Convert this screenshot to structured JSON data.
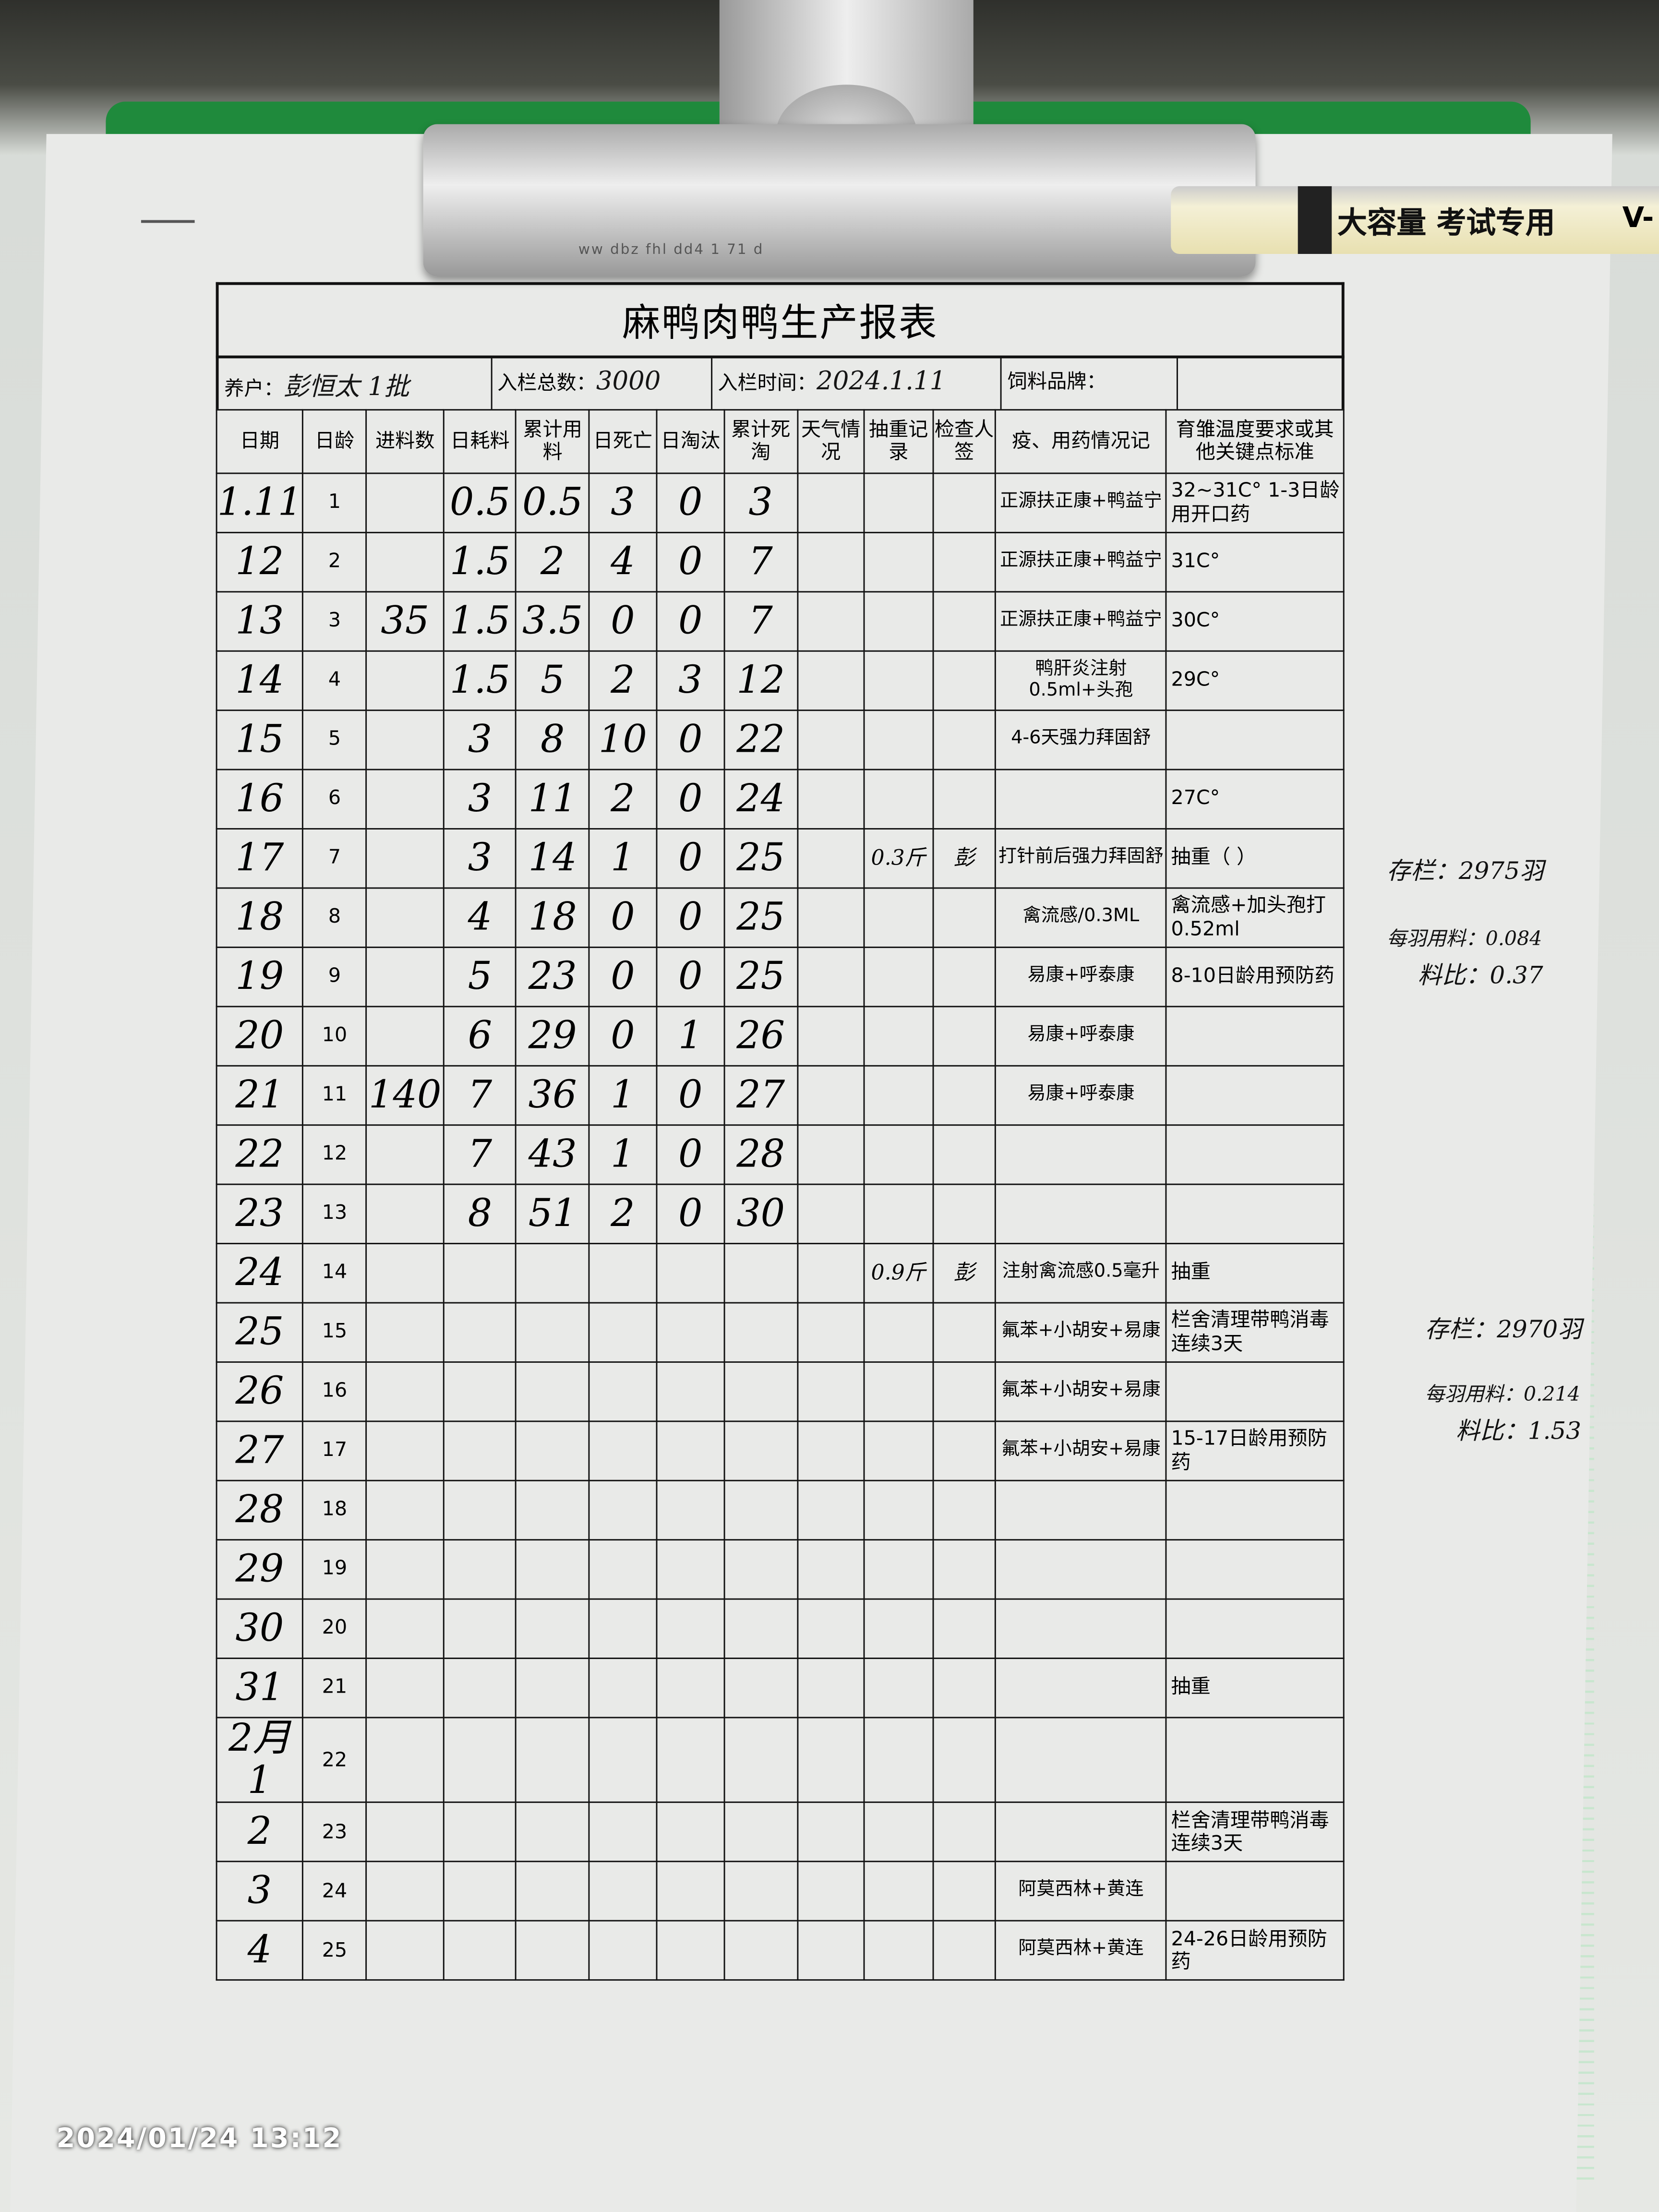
{
  "pen_label": "大容量 考试专用",
  "pen_suffix": "V-",
  "clip_engraving": "ww dbz fhl dd4 1 71 d",
  "form": {
    "title": "麻鸭肉鸭生产报表",
    "farmer_label": "养户：",
    "farmer_value": "彭恒太 1批",
    "total_label": "入栏总数：",
    "total_value": "3000",
    "date_label": "入栏时间：",
    "date_value": "2024.1.11",
    "feed_label": "饲料品牌：",
    "columns": [
      "日期",
      "日龄",
      "进料数",
      "日耗料",
      "累计用料",
      "日死亡",
      "日淘汰",
      "累计死淘",
      "天气情况",
      "抽重记录",
      "检查人签",
      "疫、用药情况记",
      "育雏温度要求或其他关键点标准"
    ],
    "rows": [
      {
        "date": "1.11",
        "age": "1",
        "feed_in": "",
        "daily_feed": "0.5",
        "cum_feed": "0.5",
        "dead": "3",
        "culled": "0",
        "cum_loss": "3",
        "weather": "",
        "weight": "",
        "sign": "",
        "meds": "正源扶正康+鸭益宁",
        "notes": "32~31C° 1-3日龄用开口药"
      },
      {
        "date": "12",
        "age": "2",
        "feed_in": "",
        "daily_feed": "1.5",
        "cum_feed": "2",
        "dead": "4",
        "culled": "0",
        "cum_loss": "7",
        "weather": "",
        "weight": "",
        "sign": "",
        "meds": "正源扶正康+鸭益宁",
        "notes": "31C°"
      },
      {
        "date": "13",
        "age": "3",
        "feed_in": "35",
        "daily_feed": "1.5",
        "cum_feed": "3.5",
        "dead": "0",
        "culled": "0",
        "cum_loss": "7",
        "weather": "",
        "weight": "",
        "sign": "",
        "meds": "正源扶正康+鸭益宁",
        "notes": "30C°"
      },
      {
        "date": "14",
        "age": "4",
        "feed_in": "",
        "daily_feed": "1.5",
        "cum_feed": "5",
        "dead": "2",
        "culled": "3",
        "cum_loss": "12",
        "weather": "",
        "weight": "",
        "sign": "",
        "meds": "鸭肝炎注射0.5ml+头孢",
        "notes": "29C°"
      },
      {
        "date": "15",
        "age": "5",
        "feed_in": "",
        "daily_feed": "3",
        "cum_feed": "8",
        "dead": "10",
        "culled": "0",
        "cum_loss": "22",
        "weather": "",
        "weight": "",
        "sign": "",
        "meds": "4-6天强力拜固舒",
        "notes": ""
      },
      {
        "date": "16",
        "age": "6",
        "feed_in": "",
        "daily_feed": "3",
        "cum_feed": "11",
        "dead": "2",
        "culled": "0",
        "cum_loss": "24",
        "weather": "",
        "weight": "",
        "sign": "",
        "meds": "",
        "notes": "27C°"
      },
      {
        "date": "17",
        "age": "7",
        "feed_in": "",
        "daily_feed": "3",
        "cum_feed": "14",
        "dead": "1",
        "culled": "0",
        "cum_loss": "25",
        "weather": "",
        "weight": "0.3斤",
        "sign": "彭",
        "meds": "打针前后强力拜固舒",
        "notes": "抽重（ ）"
      },
      {
        "date": "18",
        "age": "8",
        "feed_in": "",
        "daily_feed": "4",
        "cum_feed": "18",
        "dead": "0",
        "culled": "0",
        "cum_loss": "25",
        "weather": "",
        "weight": "",
        "sign": "",
        "meds": "禽流感/0.3ML",
        "notes": "禽流感+加头孢打0.52ml"
      },
      {
        "date": "19",
        "age": "9",
        "feed_in": "",
        "daily_feed": "5",
        "cum_feed": "23",
        "dead": "0",
        "culled": "0",
        "cum_loss": "25",
        "weather": "",
        "weight": "",
        "sign": "",
        "meds": "易康+呼泰康",
        "notes": "8-10日龄用预防药"
      },
      {
        "date": "20",
        "age": "10",
        "feed_in": "",
        "daily_feed": "6",
        "cum_feed": "29",
        "dead": "0",
        "culled": "1",
        "cum_loss": "26",
        "weather": "",
        "weight": "",
        "sign": "",
        "meds": "易康+呼泰康",
        "notes": ""
      },
      {
        "date": "21",
        "age": "11",
        "feed_in": "140",
        "daily_feed": "7",
        "cum_feed": "36",
        "dead": "1",
        "culled": "0",
        "cum_loss": "27",
        "weather": "",
        "weight": "",
        "sign": "",
        "meds": "易康+呼泰康",
        "notes": ""
      },
      {
        "date": "22",
        "age": "12",
        "feed_in": "",
        "daily_feed": "7",
        "cum_feed": "43",
        "dead": "1",
        "culled": "0",
        "cum_loss": "28",
        "weather": "",
        "weight": "",
        "sign": "",
        "meds": "",
        "notes": ""
      },
      {
        "date": "23",
        "age": "13",
        "feed_in": "",
        "daily_feed": "8",
        "cum_feed": "51",
        "dead": "2",
        "culled": "0",
        "cum_loss": "30",
        "weather": "",
        "weight": "",
        "sign": "",
        "meds": "",
        "notes": ""
      },
      {
        "date": "24",
        "age": "14",
        "feed_in": "",
        "daily_feed": "",
        "cum_feed": "",
        "dead": "",
        "culled": "",
        "cum_loss": "",
        "weather": "",
        "weight": "0.9斤",
        "sign": "彭",
        "meds": "注射禽流感0.5毫升",
        "notes": "抽重"
      },
      {
        "date": "25",
        "age": "15",
        "feed_in": "",
        "daily_feed": "",
        "cum_feed": "",
        "dead": "",
        "culled": "",
        "cum_loss": "",
        "weather": "",
        "weight": "",
        "sign": "",
        "meds": "氟苯+小胡安+易康",
        "notes": "栏舍清理带鸭消毒连续3天"
      },
      {
        "date": "26",
        "age": "16",
        "feed_in": "",
        "daily_feed": "",
        "cum_feed": "",
        "dead": "",
        "culled": "",
        "cum_loss": "",
        "weather": "",
        "weight": "",
        "sign": "",
        "meds": "氟苯+小胡安+易康",
        "notes": ""
      },
      {
        "date": "27",
        "age": "17",
        "feed_in": "",
        "daily_feed": "",
        "cum_feed": "",
        "dead": "",
        "culled": "",
        "cum_loss": "",
        "weather": "",
        "weight": "",
        "sign": "",
        "meds": "氟苯+小胡安+易康",
        "notes": "15-17日龄用预防药"
      },
      {
        "date": "28",
        "age": "18",
        "feed_in": "",
        "daily_feed": "",
        "cum_feed": "",
        "dead": "",
        "culled": "",
        "cum_loss": "",
        "weather": "",
        "weight": "",
        "sign": "",
        "meds": "",
        "notes": ""
      },
      {
        "date": "29",
        "age": "19",
        "feed_in": "",
        "daily_feed": "",
        "cum_feed": "",
        "dead": "",
        "culled": "",
        "cum_loss": "",
        "weather": "",
        "weight": "",
        "sign": "",
        "meds": "",
        "notes": ""
      },
      {
        "date": "30",
        "age": "20",
        "feed_in": "",
        "daily_feed": "",
        "cum_feed": "",
        "dead": "",
        "culled": "",
        "cum_loss": "",
        "weather": "",
        "weight": "",
        "sign": "",
        "meds": "",
        "notes": ""
      },
      {
        "date": "31",
        "age": "21",
        "feed_in": "",
        "daily_feed": "",
        "cum_feed": "",
        "dead": "",
        "culled": "",
        "cum_loss": "",
        "weather": "",
        "weight": "",
        "sign": "",
        "meds": "",
        "notes": "抽重"
      },
      {
        "date": "2月1",
        "age": "22",
        "feed_in": "",
        "daily_feed": "",
        "cum_feed": "",
        "dead": "",
        "culled": "",
        "cum_loss": "",
        "weather": "",
        "weight": "",
        "sign": "",
        "meds": "",
        "notes": ""
      },
      {
        "date": "2",
        "age": "23",
        "feed_in": "",
        "daily_feed": "",
        "cum_feed": "",
        "dead": "",
        "culled": "",
        "cum_loss": "",
        "weather": "",
        "weight": "",
        "sign": "",
        "meds": "",
        "notes": "栏舍清理带鸭消毒连续3天"
      },
      {
        "date": "3",
        "age": "24",
        "feed_in": "",
        "daily_feed": "",
        "cum_feed": "",
        "dead": "",
        "culled": "",
        "cum_loss": "",
        "weather": "",
        "weight": "",
        "sign": "",
        "meds": "阿莫西林+黄连",
        "notes": ""
      },
      {
        "date": "4",
        "age": "25",
        "feed_in": "",
        "daily_feed": "",
        "cum_feed": "",
        "dead": "",
        "culled": "",
        "cum_loss": "",
        "weather": "",
        "weight": "",
        "sign": "",
        "meds": "阿莫西林+黄连",
        "notes": "24-26日龄用预防药"
      }
    ]
  },
  "margin_notes": [
    {
      "lines": [
        "存栏：2975羽",
        "每羽用料：0.084",
        "料比：0.37"
      ]
    },
    {
      "lines": [
        "存栏：2970羽",
        "每羽用料：0.214",
        "料比：1.53"
      ]
    }
  ],
  "timestamp": "2024/01/24 13:12"
}
